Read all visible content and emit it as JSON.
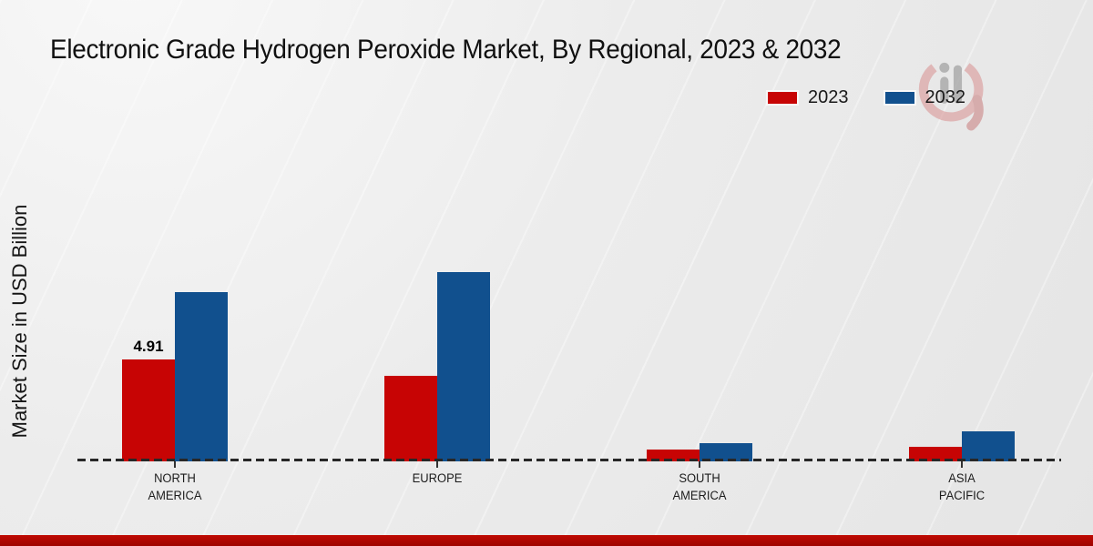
{
  "title": "Electronic Grade Hydrogen Peroxide Market, By Regional, 2023 & 2032",
  "y_axis_label": "Market Size in USD Billion",
  "chart_data": {
    "type": "bar",
    "title": "Electronic Grade Hydrogen Peroxide Market, By Regional, 2023 & 2032",
    "xlabel": "",
    "ylabel": "Market Size in USD Billion",
    "categories": [
      "North America",
      "Europe",
      "South America",
      "Asia Pacific"
    ],
    "category_display": [
      [
        "NORTH",
        "AMERICA"
      ],
      [
        "EUROPE"
      ],
      [
        "SOUTH",
        "AMERICA"
      ],
      [
        "ASIA",
        "PACIFIC"
      ]
    ],
    "series": [
      {
        "name": "2023",
        "color": "#c70404",
        "values": [
          4.91,
          4.12,
          0.55,
          0.7
        ],
        "point_labels": [
          "4.91",
          null,
          null,
          null
        ]
      },
      {
        "name": "2032",
        "color": "#11508e",
        "values": [
          8.15,
          9.12,
          0.86,
          1.45
        ],
        "point_labels": [
          null,
          null,
          null,
          null
        ]
      }
    ],
    "ylim": [
      0,
      10
    ],
    "grid": false,
    "axis_style": "dashed-baseline-only",
    "legend_position": "top-right",
    "units": "USD Billion"
  },
  "footer": {
    "band_color_top": "#bf0a02",
    "band_color_bottom": "#9e0400"
  },
  "watermark": {
    "description": "brand logo watermark",
    "ring_color": "#d89090",
    "bar_color": "#a8a8a8"
  }
}
